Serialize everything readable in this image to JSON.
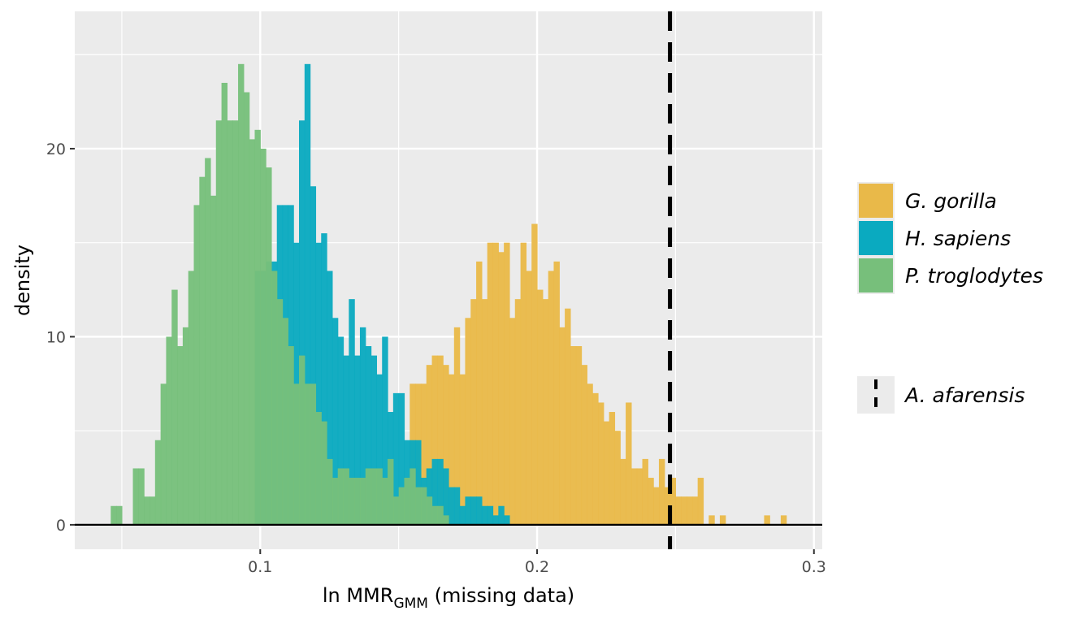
{
  "chart_data": {
    "type": "histogram",
    "xlabel": {
      "main": "ln MMR",
      "subscript": "GMM",
      "suffix": " (missing data)"
    },
    "ylabel": "density",
    "xlim": [
      0.033,
      0.303
    ],
    "ylim": [
      -1.3,
      27.3
    ],
    "x_ticks": [
      0.1,
      0.2,
      0.3
    ],
    "y_ticks": [
      0,
      10,
      20
    ],
    "bin_width": 0.002,
    "grid": true,
    "legend_position": "right",
    "series": [
      {
        "name": "G. gorilla",
        "color": "#E9B949",
        "bins": [
          [
            0.155,
            7.5
          ],
          [
            0.157,
            7.5
          ],
          [
            0.159,
            7.5
          ],
          [
            0.161,
            8.5
          ],
          [
            0.163,
            9
          ],
          [
            0.165,
            9
          ],
          [
            0.167,
            8.5
          ],
          [
            0.169,
            8
          ],
          [
            0.171,
            10.5
          ],
          [
            0.173,
            8
          ],
          [
            0.175,
            11
          ],
          [
            0.177,
            12
          ],
          [
            0.179,
            14
          ],
          [
            0.181,
            12
          ],
          [
            0.183,
            15
          ],
          [
            0.185,
            15
          ],
          [
            0.187,
            14.5
          ],
          [
            0.189,
            15
          ],
          [
            0.191,
            11
          ],
          [
            0.193,
            12
          ],
          [
            0.195,
            15
          ],
          [
            0.197,
            13.5
          ],
          [
            0.199,
            16
          ],
          [
            0.201,
            12.5
          ],
          [
            0.203,
            12
          ],
          [
            0.205,
            13.5
          ],
          [
            0.207,
            14
          ],
          [
            0.209,
            10.5
          ],
          [
            0.211,
            11.5
          ],
          [
            0.213,
            9.5
          ],
          [
            0.215,
            9.5
          ],
          [
            0.217,
            8.5
          ],
          [
            0.219,
            7.5
          ],
          [
            0.221,
            7
          ],
          [
            0.223,
            6.5
          ],
          [
            0.225,
            5.5
          ],
          [
            0.227,
            6
          ],
          [
            0.229,
            5
          ],
          [
            0.231,
            3.5
          ],
          [
            0.233,
            6.5
          ],
          [
            0.235,
            3
          ],
          [
            0.237,
            3
          ],
          [
            0.239,
            3.5
          ],
          [
            0.241,
            2.5
          ],
          [
            0.243,
            2
          ],
          [
            0.245,
            3.5
          ],
          [
            0.247,
            2
          ],
          [
            0.249,
            2.5
          ],
          [
            0.251,
            1.5
          ],
          [
            0.253,
            1.5
          ],
          [
            0.255,
            1.5
          ],
          [
            0.257,
            1.5
          ],
          [
            0.259,
            2.5
          ],
          [
            0.263,
            0.5
          ],
          [
            0.267,
            0.5
          ],
          [
            0.283,
            0.5
          ],
          [
            0.289,
            0.5
          ]
        ]
      },
      {
        "name": "H. sapiens",
        "color": "#0AAAC0",
        "bins": [
          [
            0.099,
            13.5
          ],
          [
            0.101,
            13.5
          ],
          [
            0.103,
            14
          ],
          [
            0.105,
            14
          ],
          [
            0.107,
            17
          ],
          [
            0.109,
            17
          ],
          [
            0.111,
            17
          ],
          [
            0.113,
            15
          ],
          [
            0.115,
            21.5
          ],
          [
            0.117,
            24.5
          ],
          [
            0.119,
            18
          ],
          [
            0.121,
            15
          ],
          [
            0.123,
            15.5
          ],
          [
            0.125,
            13.5
          ],
          [
            0.127,
            11
          ],
          [
            0.129,
            10
          ],
          [
            0.131,
            9
          ],
          [
            0.133,
            12
          ],
          [
            0.135,
            9
          ],
          [
            0.137,
            10.5
          ],
          [
            0.139,
            9.5
          ],
          [
            0.141,
            9
          ],
          [
            0.143,
            8
          ],
          [
            0.145,
            10
          ],
          [
            0.147,
            6
          ],
          [
            0.149,
            7
          ],
          [
            0.151,
            7
          ],
          [
            0.153,
            4.5
          ],
          [
            0.155,
            4.5
          ],
          [
            0.157,
            4.5
          ],
          [
            0.159,
            2.5
          ],
          [
            0.161,
            3
          ],
          [
            0.163,
            3.5
          ],
          [
            0.165,
            3.5
          ],
          [
            0.167,
            3
          ],
          [
            0.169,
            2
          ],
          [
            0.171,
            2
          ],
          [
            0.173,
            1
          ],
          [
            0.175,
            1.5
          ],
          [
            0.177,
            1.5
          ],
          [
            0.179,
            1.5
          ],
          [
            0.181,
            1
          ],
          [
            0.183,
            1
          ],
          [
            0.185,
            0.5
          ],
          [
            0.187,
            1
          ],
          [
            0.189,
            0.5
          ]
        ]
      },
      {
        "name": "P. troglodytes",
        "color": "#77BF7B",
        "bins": [
          [
            0.047,
            1
          ],
          [
            0.049,
            1
          ],
          [
            0.055,
            3
          ],
          [
            0.057,
            3
          ],
          [
            0.059,
            1.5
          ],
          [
            0.061,
            1.5
          ],
          [
            0.063,
            4.5
          ],
          [
            0.065,
            7.5
          ],
          [
            0.067,
            10
          ],
          [
            0.069,
            12.5
          ],
          [
            0.071,
            9.5
          ],
          [
            0.073,
            10.5
          ],
          [
            0.075,
            13.5
          ],
          [
            0.077,
            17
          ],
          [
            0.079,
            18.5
          ],
          [
            0.081,
            19.5
          ],
          [
            0.083,
            17.5
          ],
          [
            0.085,
            21.5
          ],
          [
            0.087,
            23.5
          ],
          [
            0.089,
            21.5
          ],
          [
            0.091,
            21.5
          ],
          [
            0.093,
            24.5
          ],
          [
            0.095,
            23
          ],
          [
            0.097,
            20.5
          ],
          [
            0.099,
            21
          ],
          [
            0.101,
            20
          ],
          [
            0.103,
            19
          ],
          [
            0.105,
            13.5
          ],
          [
            0.107,
            12
          ],
          [
            0.109,
            11
          ],
          [
            0.111,
            9.5
          ],
          [
            0.113,
            7.5
          ],
          [
            0.115,
            9
          ],
          [
            0.117,
            7.5
          ],
          [
            0.119,
            7.5
          ],
          [
            0.121,
            6
          ],
          [
            0.123,
            5.5
          ],
          [
            0.125,
            3.5
          ],
          [
            0.127,
            2.5
          ],
          [
            0.129,
            3
          ],
          [
            0.131,
            3
          ],
          [
            0.133,
            2.5
          ],
          [
            0.135,
            2.5
          ],
          [
            0.137,
            2.5
          ],
          [
            0.139,
            3
          ],
          [
            0.141,
            3
          ],
          [
            0.143,
            3
          ],
          [
            0.145,
            2.5
          ],
          [
            0.147,
            3.5
          ],
          [
            0.149,
            1.5
          ],
          [
            0.151,
            2
          ],
          [
            0.153,
            2.5
          ],
          [
            0.155,
            3
          ],
          [
            0.157,
            2
          ],
          [
            0.159,
            2
          ],
          [
            0.161,
            1.5
          ],
          [
            0.163,
            1
          ],
          [
            0.165,
            1
          ],
          [
            0.167,
            0.5
          ]
        ]
      }
    ],
    "reference_line": {
      "name": "A. afarensis",
      "x": 0.248,
      "style": "dashed",
      "color": "#000000"
    }
  }
}
